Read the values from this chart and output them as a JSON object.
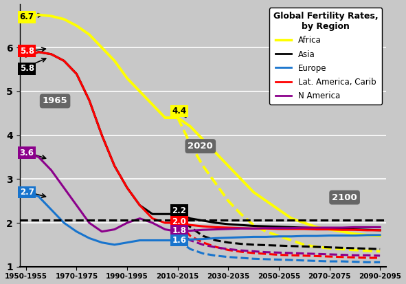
{
  "title": "Global Fertility Rates,\nby Region",
  "background_color": "#c8c8c8",
  "xtick_labels": [
    "1950-1955",
    "1970-1975",
    "1990-1995",
    "2010-2015",
    "2030-2035",
    "2050-2055",
    "2070-2075",
    "2090-2095"
  ],
  "xtick_positions": [
    0,
    4,
    8,
    12,
    16,
    20,
    24,
    28
  ],
  "regions": [
    "Africa",
    "Asia",
    "Europe",
    "Lat. America, Carib",
    "N America"
  ],
  "colors": [
    "#ffff00",
    "#000000",
    "#1874cd",
    "#ff0000",
    "#8b008b"
  ],
  "africa_hist_x": [
    0,
    1,
    2,
    3,
    4,
    5,
    6,
    7,
    8,
    9,
    10,
    11,
    12
  ],
  "africa_hist_y": [
    6.7,
    6.75,
    6.72,
    6.65,
    6.5,
    6.3,
    6.0,
    5.7,
    5.3,
    5.0,
    4.7,
    4.4,
    4.4
  ],
  "africa_proj_u_x": [
    12,
    13,
    14,
    15,
    16,
    17,
    18,
    19,
    20,
    21,
    22,
    23,
    24,
    25,
    26,
    27,
    28
  ],
  "africa_proj_u_y": [
    4.4,
    4.2,
    3.9,
    3.6,
    3.3,
    3.0,
    2.7,
    2.5,
    2.3,
    2.1,
    2.0,
    1.9,
    1.85,
    1.8,
    1.75,
    1.72,
    1.7
  ],
  "africa_proj_l_y": [
    4.4,
    3.8,
    3.3,
    2.9,
    2.5,
    2.2,
    1.95,
    1.8,
    1.7,
    1.6,
    1.5,
    1.45,
    1.42,
    1.4,
    1.38,
    1.36,
    1.35
  ],
  "asia_hist_x": [
    0,
    1,
    2,
    3,
    4,
    5,
    6,
    7,
    8,
    9,
    10,
    11,
    12
  ],
  "asia_hist_y": [
    5.8,
    5.9,
    5.85,
    5.7,
    5.4,
    4.8,
    4.0,
    3.3,
    2.8,
    2.4,
    2.2,
    2.2,
    2.2
  ],
  "asia_proj_u_x": [
    12,
    13,
    14,
    15,
    16,
    17,
    18,
    19,
    20,
    21,
    22,
    23,
    24,
    25,
    26,
    27,
    28
  ],
  "asia_proj_u_y": [
    2.2,
    2.1,
    2.05,
    2.0,
    1.97,
    1.95,
    1.93,
    1.92,
    1.91,
    1.9,
    1.89,
    1.88,
    1.87,
    1.86,
    1.85,
    1.84,
    1.83
  ],
  "asia_proj_l_y": [
    2.2,
    1.9,
    1.7,
    1.6,
    1.55,
    1.52,
    1.5,
    1.49,
    1.48,
    1.47,
    1.46,
    1.45,
    1.44,
    1.43,
    1.42,
    1.41,
    1.4
  ],
  "europe_hist_x": [
    0,
    1,
    2,
    3,
    4,
    5,
    6,
    7,
    8,
    9,
    10,
    11,
    12
  ],
  "europe_hist_y": [
    2.7,
    2.6,
    2.3,
    2.0,
    1.8,
    1.65,
    1.55,
    1.5,
    1.55,
    1.6,
    1.6,
    1.6,
    1.6
  ],
  "europe_proj_u_x": [
    12,
    13,
    14,
    15,
    16,
    17,
    18,
    19,
    20,
    21,
    22,
    23,
    24,
    25,
    26,
    27,
    28
  ],
  "europe_proj_u_y": [
    1.6,
    1.62,
    1.63,
    1.65,
    1.66,
    1.67,
    1.68,
    1.68,
    1.69,
    1.69,
    1.7,
    1.7,
    1.71,
    1.71,
    1.71,
    1.72,
    1.72
  ],
  "europe_proj_l_y": [
    1.6,
    1.4,
    1.3,
    1.25,
    1.22,
    1.2,
    1.18,
    1.17,
    1.16,
    1.15,
    1.14,
    1.13,
    1.12,
    1.12,
    1.11,
    1.1,
    1.1
  ],
  "latam_hist_x": [
    0,
    1,
    2,
    3,
    4,
    5,
    6,
    7,
    8,
    9,
    10,
    11,
    12
  ],
  "latam_hist_y": [
    5.8,
    5.9,
    5.85,
    5.7,
    5.4,
    4.8,
    4.0,
    3.3,
    2.8,
    2.4,
    2.1,
    2.0,
    2.0
  ],
  "latam_proj_u_x": [
    12,
    13,
    14,
    15,
    16,
    17,
    18,
    19,
    20,
    21,
    22,
    23,
    24,
    25,
    26,
    27,
    28
  ],
  "latam_proj_u_y": [
    2.0,
    1.95,
    1.92,
    1.9,
    1.89,
    1.88,
    1.87,
    1.87,
    1.86,
    1.86,
    1.86,
    1.85,
    1.85,
    1.84,
    1.84,
    1.83,
    1.83
  ],
  "latam_proj_l_y": [
    2.0,
    1.7,
    1.55,
    1.45,
    1.38,
    1.34,
    1.31,
    1.29,
    1.27,
    1.26,
    1.25,
    1.24,
    1.23,
    1.22,
    1.21,
    1.2,
    1.2
  ],
  "namerica_hist_x": [
    0,
    1,
    2,
    3,
    4,
    5,
    6,
    7,
    8,
    9,
    10,
    11,
    12
  ],
  "namerica_hist_y": [
    3.6,
    3.5,
    3.2,
    2.8,
    2.4,
    2.0,
    1.8,
    1.85,
    2.0,
    2.1,
    2.0,
    1.85,
    1.8
  ],
  "namerica_proj_u_x": [
    12,
    13,
    14,
    15,
    16,
    17,
    18,
    19,
    20,
    21,
    22,
    23,
    24,
    25,
    26,
    27,
    28
  ],
  "namerica_proj_u_y": [
    1.8,
    1.82,
    1.84,
    1.85,
    1.86,
    1.87,
    1.87,
    1.88,
    1.88,
    1.88,
    1.89,
    1.89,
    1.89,
    1.89,
    1.9,
    1.9,
    1.9
  ],
  "namerica_proj_l_y": [
    1.8,
    1.6,
    1.5,
    1.44,
    1.4,
    1.37,
    1.35,
    1.33,
    1.32,
    1.31,
    1.3,
    1.29,
    1.28,
    1.27,
    1.26,
    1.26,
    1.25
  ]
}
